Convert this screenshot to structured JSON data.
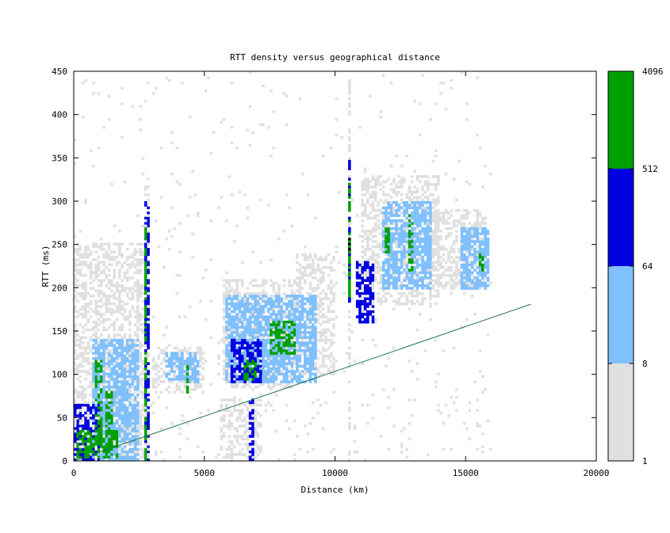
{
  "chart_data": {
    "type": "heatmap",
    "title": "RTT density versus geographical distance",
    "xlabel": "Distance (km)",
    "ylabel": "RTT (ms)",
    "xlim": [
      0,
      20000
    ],
    "ylim": [
      0,
      450
    ],
    "xticks": [
      "0",
      "5000",
      "10000",
      "15000",
      "20000"
    ],
    "yticks": [
      "0",
      "50",
      "100",
      "150",
      "200",
      "250",
      "300",
      "350",
      "400",
      "450"
    ],
    "colorbar": {
      "scale": "log",
      "ticks": [
        "1",
        "8",
        "64",
        "512",
        "4096"
      ],
      "bands": [
        {
          "from": 1,
          "to": 8,
          "color": "#e0e0e0"
        },
        {
          "from": 8,
          "to": 64,
          "color": "#80c0ff"
        },
        {
          "from": 64,
          "to": 512,
          "color": "#0000e0"
        },
        {
          "from": 512,
          "to": 4096,
          "color": "#00a000"
        }
      ]
    },
    "reference_line": {
      "color": "#207050",
      "points": [
        [
          0,
          0
        ],
        [
          17500,
          181
        ]
      ]
    },
    "density_clusters": [
      {
        "x0": 0,
        "x1": 1000,
        "y0": 0,
        "y1": 65,
        "level": 2
      },
      {
        "x0": 100,
        "x1": 1700,
        "y0": 5,
        "y1": 35,
        "level": 3
      },
      {
        "x0": 850,
        "x1": 1100,
        "y0": 20,
        "y1": 120,
        "level": 3
      },
      {
        "x0": 1250,
        "x1": 1500,
        "y0": 10,
        "y1": 80,
        "level": 3
      },
      {
        "x0": 700,
        "x1": 2500,
        "y0": 0,
        "y1": 140,
        "level": 1
      },
      {
        "x0": 0,
        "x1": 2800,
        "y0": 0,
        "y1": 250,
        "level": 0
      },
      {
        "x0": 2720,
        "x1": 2820,
        "y0": 0,
        "y1": 300,
        "level": 2
      },
      {
        "x0": 2730,
        "x1": 2800,
        "y0": 0,
        "y1": 270,
        "level": 3
      },
      {
        "x0": 2700,
        "x1": 2850,
        "y0": 0,
        "y1": 320,
        "level": 0
      },
      {
        "x0": 3000,
        "x1": 5000,
        "y0": 80,
        "y1": 130,
        "level": 0
      },
      {
        "x0": 3500,
        "x1": 4800,
        "y0": 90,
        "y1": 125,
        "level": 1
      },
      {
        "x0": 4300,
        "x1": 4400,
        "y0": 80,
        "y1": 115,
        "level": 3
      },
      {
        "x0": 5600,
        "x1": 7200,
        "y0": 0,
        "y1": 70,
        "level": 0
      },
      {
        "x0": 6700,
        "x1": 6850,
        "y0": 0,
        "y1": 70,
        "level": 2
      },
      {
        "x0": 5700,
        "x1": 8500,
        "y0": 85,
        "y1": 210,
        "level": 0
      },
      {
        "x0": 5800,
        "x1": 9300,
        "y0": 90,
        "y1": 190,
        "level": 1
      },
      {
        "x0": 6000,
        "x1": 7200,
        "y0": 90,
        "y1": 140,
        "level": 2
      },
      {
        "x0": 6500,
        "x1": 7000,
        "y0": 95,
        "y1": 115,
        "level": 3
      },
      {
        "x0": 7500,
        "x1": 8500,
        "y0": 125,
        "y1": 160,
        "level": 3
      },
      {
        "x0": 8500,
        "x1": 10000,
        "y0": 100,
        "y1": 240,
        "level": 0
      },
      {
        "x0": 10500,
        "x1": 10600,
        "y0": 0,
        "y1": 440,
        "level": 0
      },
      {
        "x0": 10500,
        "x1": 10600,
        "y0": 180,
        "y1": 350,
        "level": 2
      },
      {
        "x0": 10510,
        "x1": 10590,
        "y0": 190,
        "y1": 320,
        "level": 3
      },
      {
        "x0": 10540,
        "x1": 10590,
        "y0": 245,
        "y1": 260,
        "level": 4
      },
      {
        "x0": 10800,
        "x1": 11500,
        "y0": 160,
        "y1": 230,
        "level": 2
      },
      {
        "x0": 11000,
        "x1": 14000,
        "y0": 180,
        "y1": 330,
        "level": 0
      },
      {
        "x0": 11800,
        "x1": 13700,
        "y0": 200,
        "y1": 300,
        "level": 1
      },
      {
        "x0": 11900,
        "x1": 12100,
        "y0": 240,
        "y1": 270,
        "level": 3
      },
      {
        "x0": 12800,
        "x1": 12950,
        "y0": 220,
        "y1": 290,
        "level": 3
      },
      {
        "x0": 13500,
        "x1": 15800,
        "y0": 200,
        "y1": 290,
        "level": 0
      },
      {
        "x0": 14800,
        "x1": 15900,
        "y0": 200,
        "y1": 270,
        "level": 1
      },
      {
        "x0": 15500,
        "x1": 15700,
        "y0": 220,
        "y1": 240,
        "level": 3
      }
    ]
  }
}
